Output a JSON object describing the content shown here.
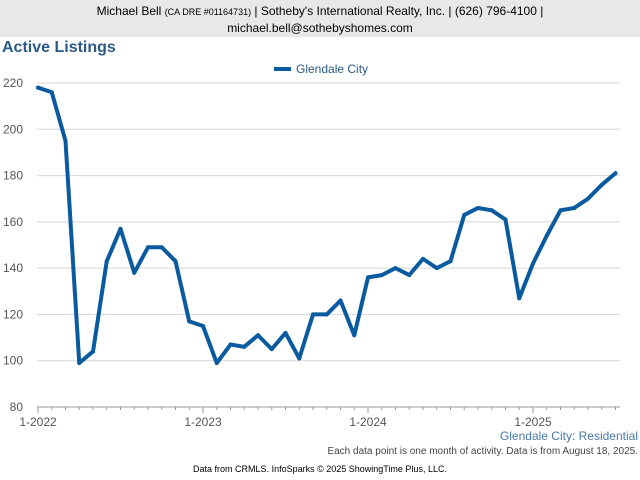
{
  "header": {
    "name": "Michael Bell",
    "license": "(CA DRE #01164731)",
    "details": "| Sotheby's International Realty, Inc. | (626) 796-4100 |",
    "email": "michael.bell@sothebyshomes.com"
  },
  "colors": {
    "line": "#0a5aa0",
    "grid": "#d6d6d6",
    "title": "#2a5a86"
  },
  "chart_data": {
    "type": "line",
    "title": "Active Listings",
    "legend_position": "top-center",
    "grid": true,
    "xlabel": "",
    "ylabel": "",
    "ylim": [
      80,
      220
    ],
    "y_ticks": [
      80,
      100,
      120,
      140,
      160,
      180,
      200,
      220
    ],
    "x_tick_labels": [
      "1-2022",
      "1-2023",
      "1-2024",
      "1-2025"
    ],
    "x_tick_index": [
      0,
      12,
      24,
      36
    ],
    "series": [
      {
        "name": "Glendale City",
        "values": [
          218,
          216,
          195,
          99,
          104,
          143,
          157,
          138,
          149,
          149,
          143,
          117,
          115,
          99,
          107,
          106,
          111,
          105,
          112,
          101,
          120,
          120,
          126,
          111,
          136,
          137,
          140,
          137,
          144,
          140,
          143,
          163,
          166,
          165,
          161,
          127,
          142,
          154,
          165,
          166,
          170,
          176,
          181
        ]
      }
    ]
  },
  "footnotes": {
    "series_label": "Glendale City: Residential",
    "activity": "Each data point is one month of activity. Data is from August 18, 2025."
  },
  "credits": "Data from CRMLS. InfoSparks © 2025 ShowingTime Plus, LLC."
}
